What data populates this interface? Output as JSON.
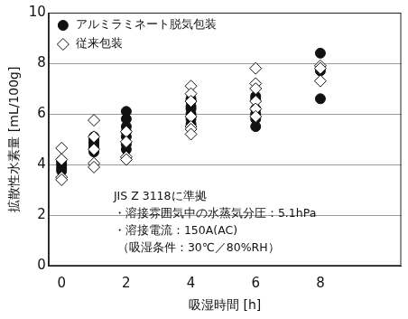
{
  "chart_data": {
    "type": "scatter",
    "x_label": "吸湿時間 [h]",
    "y_label": "拡散性水素量 [mL/100g]",
    "xlim": [
      -0.4,
      10.5
    ],
    "xticks": [
      0,
      2,
      4,
      6,
      8
    ],
    "ylim": [
      0,
      10
    ],
    "yticks": [
      0,
      2,
      4,
      6,
      8,
      10
    ],
    "grid": true,
    "legend": "upper left",
    "annotations": [
      "JIS Z 3118に準拠",
      "・溶接雰囲気中の水蒸気分圧：5.1hPa",
      "・溶接電流：150A(AC)",
      "（吸湿条件：30℃／80%RH）"
    ],
    "series": [
      {
        "name": "アルミラミネート脱気包装",
        "color": "#111111",
        "marker": "circle",
        "x": [
          0,
          0,
          0,
          0,
          0,
          1,
          1,
          1,
          1,
          1,
          1,
          1,
          2,
          2,
          2,
          2,
          2,
          2,
          2,
          4,
          4,
          4,
          4,
          4,
          4,
          4,
          6,
          6,
          6,
          6,
          6,
          6,
          8,
          8,
          8
        ],
        "values": [
          4.15,
          4.05,
          3.95,
          3.85,
          3.75,
          5.1,
          5.0,
          4.9,
          4.8,
          4.7,
          4.6,
          4.5,
          6.1,
          5.8,
          5.5,
          5.3,
          5.1,
          4.8,
          4.6,
          6.6,
          6.5,
          6.3,
          6.2,
          6.0,
          5.8,
          5.6,
          6.7,
          6.6,
          6.2,
          6.0,
          5.8,
          5.5,
          8.4,
          7.7,
          6.6
        ]
      },
      {
        "name": "従来包装",
        "color": "#111111",
        "marker": "diamond",
        "x": [
          0,
          0,
          0,
          0,
          1,
          1,
          1,
          1,
          1,
          2,
          2,
          2,
          2,
          4,
          4,
          4,
          4,
          4,
          4,
          4,
          6,
          6,
          6,
          6,
          6,
          6,
          8,
          8,
          8
        ],
        "values": [
          4.65,
          4.2,
          3.5,
          3.4,
          5.75,
          5.1,
          4.6,
          4.05,
          3.9,
          5.3,
          4.9,
          4.3,
          4.2,
          7.1,
          6.8,
          6.5,
          5.9,
          5.5,
          5.4,
          5.2,
          7.8,
          7.2,
          7.0,
          6.5,
          6.2,
          5.9,
          7.9,
          7.8,
          7.3
        ]
      }
    ]
  }
}
